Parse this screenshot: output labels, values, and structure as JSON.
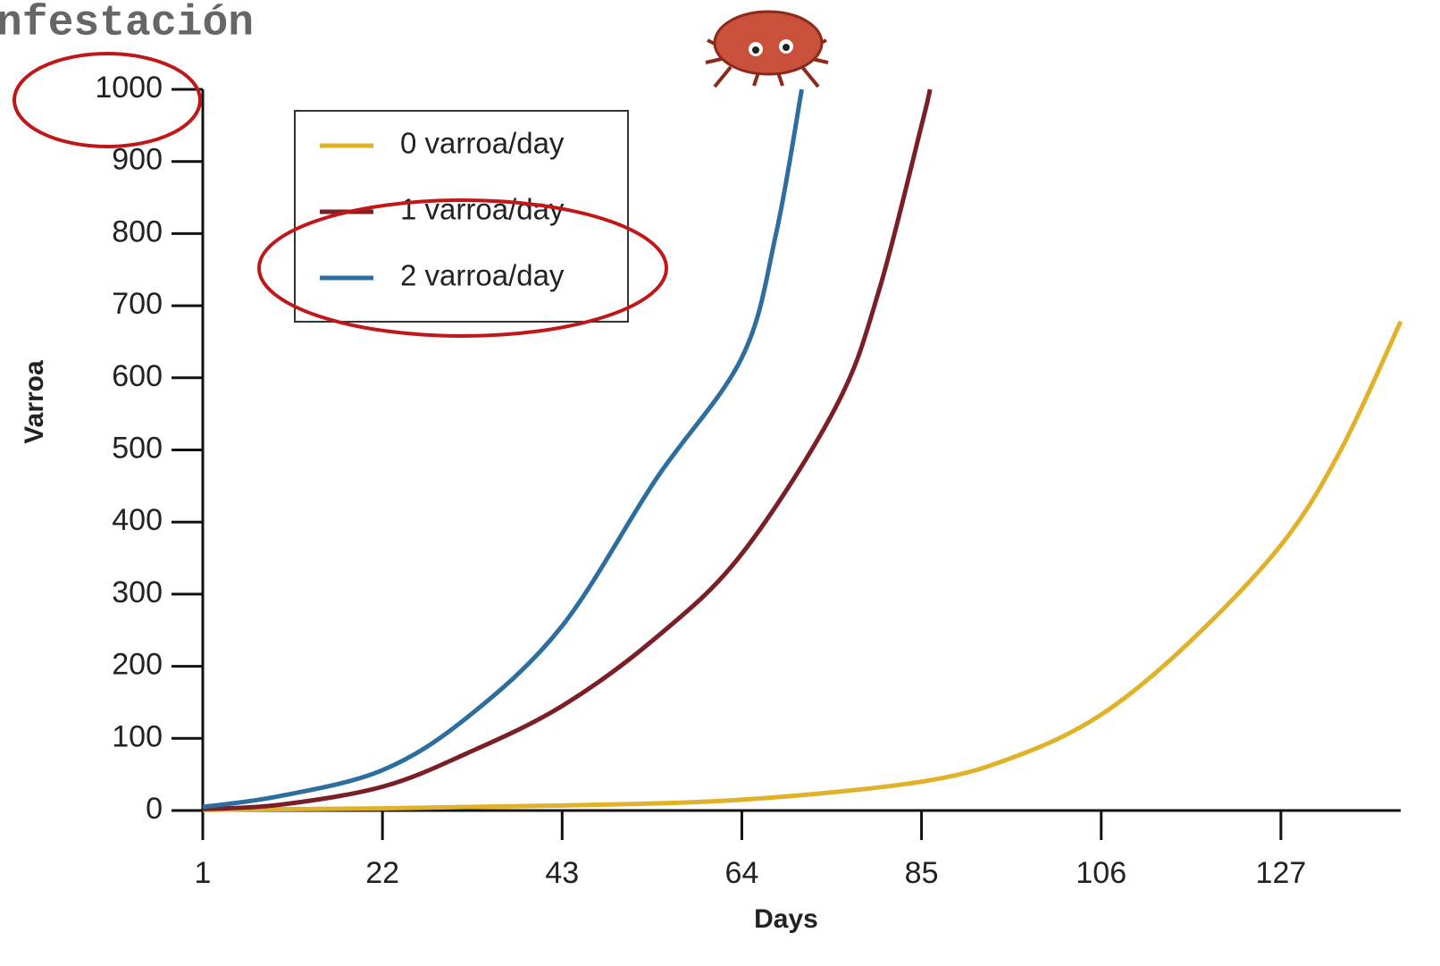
{
  "chart_data": {
    "type": "line",
    "title": "nfestación",
    "x_label": "Days",
    "y_label": "Varroa",
    "xlim": [
      1,
      141
    ],
    "ylim": [
      0,
      1000
    ],
    "xticks": [
      1,
      22,
      43,
      64,
      85,
      106,
      127
    ],
    "yticks": [
      0,
      100,
      200,
      300,
      400,
      500,
      600,
      700,
      800,
      900,
      1000
    ],
    "series": [
      {
        "name": "0 varroa/day",
        "color": "#e0b22a",
        "x": [
          1,
          22,
          43,
          64,
          85,
          96,
          106,
          116,
          127,
          134,
          141
        ],
        "values": [
          1,
          3,
          7,
          15,
          40,
          75,
          133,
          230,
          368,
          500,
          678
        ]
      },
      {
        "name": "1 varroa/day",
        "color": "#7a1f26",
        "x": [
          1,
          10,
          22,
          32,
          43,
          54,
          64,
          75,
          80,
          85,
          86
        ],
        "values": [
          2,
          8,
          33,
          80,
          145,
          240,
          356,
          560,
          720,
          950,
          1000
        ]
      },
      {
        "name": "2 varroa/day",
        "color": "#2e6e9e",
        "x": [
          1,
          10,
          22,
          32,
          43,
          54,
          64,
          68,
          71
        ],
        "values": [
          5,
          20,
          56,
          130,
          256,
          460,
          628,
          800,
          1000
        ]
      }
    ]
  }
}
